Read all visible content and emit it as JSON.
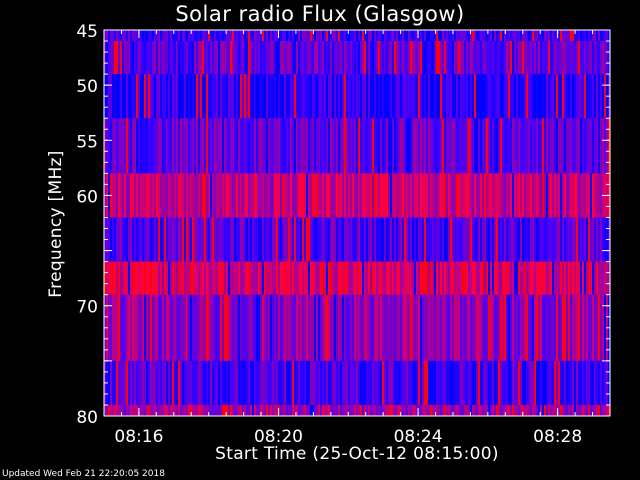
{
  "title": "Solar radio Flux (Glasgow)",
  "xlabel": "Start Time (25-Oct-12 08:15:00)",
  "ylabel": "Frequency [MHz]",
  "footer": "Updated Wed Feb 21 22:20:05 2018",
  "colors": {
    "background": "#000000",
    "axis": "#ffffff",
    "low": "#0000ff",
    "high": "#ff0000"
  },
  "chart_data": {
    "type": "heatmap",
    "title": "Solar radio Flux (Glasgow)",
    "xlabel": "Start Time (25-Oct-12 08:15:00)",
    "ylabel": "Frequency [MHz]",
    "x_range_minutes_after_start": [
      0,
      14.5
    ],
    "xticks": [
      {
        "label": "08:16",
        "minutes_after_start": 1
      },
      {
        "label": "08:20",
        "minutes_after_start": 5
      },
      {
        "label": "08:24",
        "minutes_after_start": 9
      },
      {
        "label": "08:28",
        "minutes_after_start": 13
      }
    ],
    "ylim": [
      45,
      80
    ],
    "y_axis_inverted": true,
    "yticks": [
      45,
      50,
      55,
      60,
      65,
      70,
      75,
      80
    ],
    "yticklabels": [
      "45",
      "50",
      "55",
      "60",
      "",
      "70",
      "",
      "80"
    ],
    "colorscale": [
      "blue",
      "purple",
      "red"
    ],
    "frequency_bands_mhz": [
      {
        "range": [
          45,
          46
        ],
        "level": 0.2
      },
      {
        "range": [
          46,
          49
        ],
        "level": 0.3
      },
      {
        "range": [
          49,
          53
        ],
        "level": 0.12
      },
      {
        "range": [
          53,
          58
        ],
        "level": 0.28
      },
      {
        "range": [
          58,
          62
        ],
        "level": 0.62
      },
      {
        "range": [
          62,
          66
        ],
        "level": 0.25
      },
      {
        "range": [
          66,
          69
        ],
        "level": 0.7
      },
      {
        "range": [
          69,
          75
        ],
        "level": 0.45
      },
      {
        "range": [
          75,
          79
        ],
        "level": 0.22
      },
      {
        "range": [
          79,
          80
        ],
        "level": 0.5
      }
    ]
  }
}
